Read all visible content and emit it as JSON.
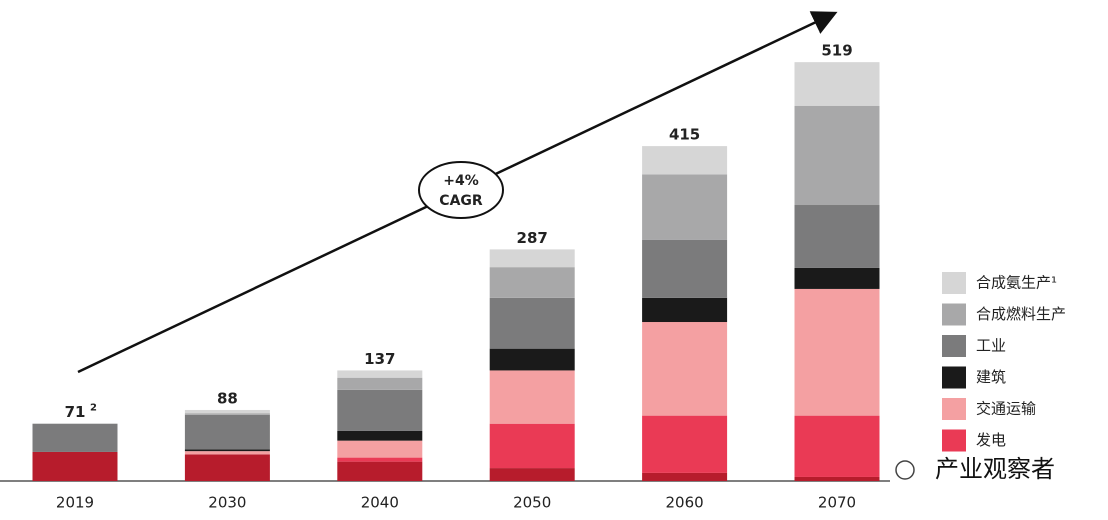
{
  "chart_data": {
    "type": "stacked-bar",
    "categories": [
      "2019",
      "2030",
      "2040",
      "2050",
      "2060",
      "2070"
    ],
    "totals": [
      71,
      88,
      137,
      287,
      415,
      519
    ],
    "total_footnote": "2",
    "series": [
      {
        "name": null,
        "color": "#b71c2c",
        "values": [
          36,
          33,
          24,
          16,
          10,
          5
        ]
      },
      {
        "name": "发电",
        "color": "#ea3a55",
        "values": [
          0,
          0,
          5,
          55,
          71,
          76
        ]
      },
      {
        "name": "交通运输",
        "color": "#f4a0a2",
        "values": [
          0,
          4,
          21,
          66,
          116,
          157
        ]
      },
      {
        "name": "建筑",
        "color": "#1a1a1a",
        "values": [
          0,
          2,
          12,
          27,
          30,
          26
        ]
      },
      {
        "name": "工业",
        "color": "#7b7b7c",
        "values": [
          35,
          43,
          51,
          63,
          72,
          78
        ]
      },
      {
        "name": "合成燃料生产",
        "color": "#a8a8a9",
        "values": [
          0,
          2,
          15,
          38,
          81,
          123
        ]
      },
      {
        "name": "合成氨生产¹",
        "color": "#d6d6d6",
        "values": [
          0,
          4,
          9,
          22,
          35,
          54
        ]
      }
    ],
    "annotation": [
      "+4%",
      "CAGR"
    ],
    "watermark": "产业观察者"
  }
}
